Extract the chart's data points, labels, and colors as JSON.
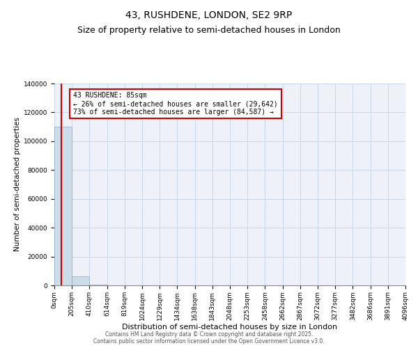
{
  "title": "43, RUSHDENE, LONDON, SE2 9RP",
  "subtitle": "Size of property relative to semi-detached houses in London",
  "xlabel": "Distribution of semi-detached houses by size in London",
  "ylabel": "Number of semi-detached properties",
  "bar_color": "#ccdce8",
  "bar_edge_color": "#88aac0",
  "grid_color": "#c8d8e8",
  "annotation_box_color": "#cc0000",
  "annotation_line_color": "#cc0000",
  "property_size": 85,
  "annotation_text": "43 RUSHDENE: 85sqm\n← 26% of semi-detached houses are smaller (29,642)\n73% of semi-detached houses are larger (84,587) →",
  "footer_text": "Contains HM Land Registry data © Crown copyright and database right 2025.\nContains public sector information licensed under the Open Government Licence v3.0.",
  "bin_edges": [
    0,
    205,
    410,
    614,
    819,
    1024,
    1229,
    1434,
    1638,
    1843,
    2048,
    2253,
    2458,
    2662,
    2867,
    3072,
    3277,
    3482,
    3686,
    3891,
    4096
  ],
  "bar_heights": [
    110000,
    6500,
    500,
    100,
    50,
    30,
    20,
    15,
    10,
    8,
    6,
    5,
    4,
    3,
    3,
    2,
    2,
    2,
    1,
    1
  ],
  "ylim": [
    0,
    140000
  ],
  "yticks": [
    0,
    20000,
    40000,
    60000,
    80000,
    100000,
    120000,
    140000
  ],
  "background_color": "#ffffff",
  "plot_bg_color": "#eef2f8",
  "title_fontsize": 10,
  "subtitle_fontsize": 9,
  "tick_fontsize": 6.5,
  "ylabel_fontsize": 7.5,
  "xlabel_fontsize": 8,
  "footer_fontsize": 5.5
}
